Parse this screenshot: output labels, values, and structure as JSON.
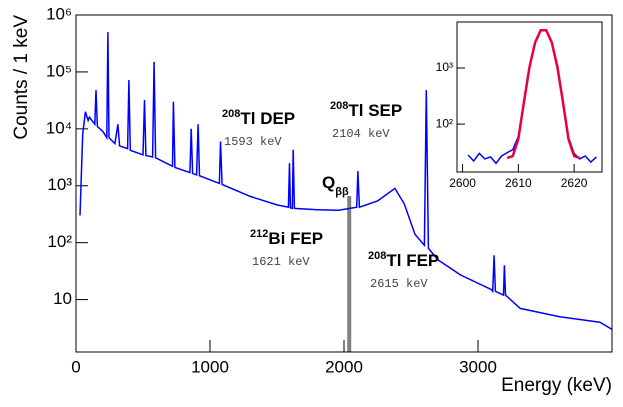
{
  "chart_data": [
    {
      "type": "line",
      "xlabel": "Energy (keV)",
      "ylabel": "Counts / 1 keV",
      "log_y": true,
      "xlim": [
        0,
        4000
      ],
      "ylim": [
        1.2,
        1000000
      ],
      "xticks": [
        0,
        1000,
        2000,
        3000
      ],
      "yticks": [
        10,
        {
          "value": 100,
          "label": "10²"
        },
        {
          "value": 1000,
          "label": "10³"
        },
        {
          "value": 10000,
          "label": "10⁴"
        },
        {
          "value": 100000,
          "label": "10⁵"
        },
        {
          "value": 1000000,
          "label": "10⁶"
        }
      ],
      "series": [
        {
          "color": "#0000ff",
          "x": [
            30,
            50,
            70,
            90,
            100,
            140,
            149,
            160,
            200,
            230,
            238,
            246,
            290,
            313,
            325,
            385,
            395,
            405,
            500,
            511,
            522,
            572,
            583,
            594,
            720,
            727,
            738,
            850,
            860,
            870,
            900,
            911,
            922,
            1070,
            1078,
            1090,
            1300,
            1500,
            1585,
            1593,
            1600,
            1614,
            1621,
            1630,
            1800,
            1960,
            2095,
            2104,
            2115,
            2250,
            2380,
            2450,
            2530,
            2600,
            2614,
            2630,
            2700,
            2870,
            3100,
            3110,
            3120,
            3130,
            3190,
            3197,
            3205,
            3315,
            3610,
            3910,
            4000
          ],
          "values": [
            300,
            8000,
            20000,
            14000,
            16000,
            12000,
            48000,
            11000,
            9000,
            7000,
            500000,
            7000,
            5500,
            12000,
            5000,
            4500,
            72000,
            4200,
            3500,
            32000,
            3400,
            3200,
            150000,
            3100,
            2200,
            30000,
            2100,
            1700,
            10000,
            1650,
            1550,
            12000,
            1500,
            1100,
            6000,
            1050,
            650,
            460,
            420,
            2500,
            410,
            400,
            4300,
            400,
            380,
            370,
            420,
            1800,
            420,
            540,
            900,
            480,
            140,
            90,
            48000,
            80,
            50,
            27,
            15,
            14,
            60,
            14,
            12,
            40,
            12,
            7,
            5,
            4,
            3
          ]
        }
      ],
      "qbb_marker": {
        "x": 2039,
        "color": "#808080"
      },
      "annotations": [
        {
          "mass": "208",
          "text": "Tl DEP",
          "energy": "1593 keV"
        },
        {
          "mass": "208",
          "text": "Tl SEP",
          "energy": "2104 keV"
        },
        {
          "mass": "212",
          "text": "Bi FEP",
          "energy": "1621 keV"
        },
        {
          "mass": "208",
          "text": "Tl FEP",
          "energy": "2615 keV"
        }
      ],
      "qbb_label": {
        "text": "Q",
        "sub": "ββ"
      }
    },
    {
      "type": "line",
      "log_y": true,
      "xlim": [
        2599,
        2625
      ],
      "ylim": [
        14,
        6600
      ],
      "xticks": [
        2600,
        2610,
        2620
      ],
      "yticks": [
        {
          "value": 100,
          "label": "10²"
        },
        {
          "value": 1000,
          "label": "10³"
        }
      ],
      "series": [
        {
          "color": "#0000ff",
          "x": [
            2601,
            2602,
            2603,
            2604,
            2605,
            2606,
            2607,
            2608,
            2609,
            2610,
            2611,
            2612,
            2613,
            2614,
            2615,
            2616,
            2617,
            2618,
            2619,
            2620,
            2621,
            2622,
            2623,
            2624
          ],
          "values": [
            28,
            22,
            30,
            24,
            26,
            20,
            27,
            31,
            35,
            60,
            250,
            1000,
            2900,
            4800,
            4700,
            2800,
            1050,
            260,
            58,
            30,
            24,
            27,
            21,
            26
          ]
        },
        {
          "color": "#e8003a",
          "x": [
            2608,
            2609,
            2610,
            2611,
            2612,
            2613,
            2614,
            2615,
            2616,
            2617,
            2618,
            2619,
            2620,
            2621
          ],
          "values": [
            25,
            27,
            54,
            245,
            1040,
            2841,
            4716,
            4716,
            2841,
            1040,
            245,
            54,
            27,
            25
          ]
        }
      ]
    }
  ]
}
